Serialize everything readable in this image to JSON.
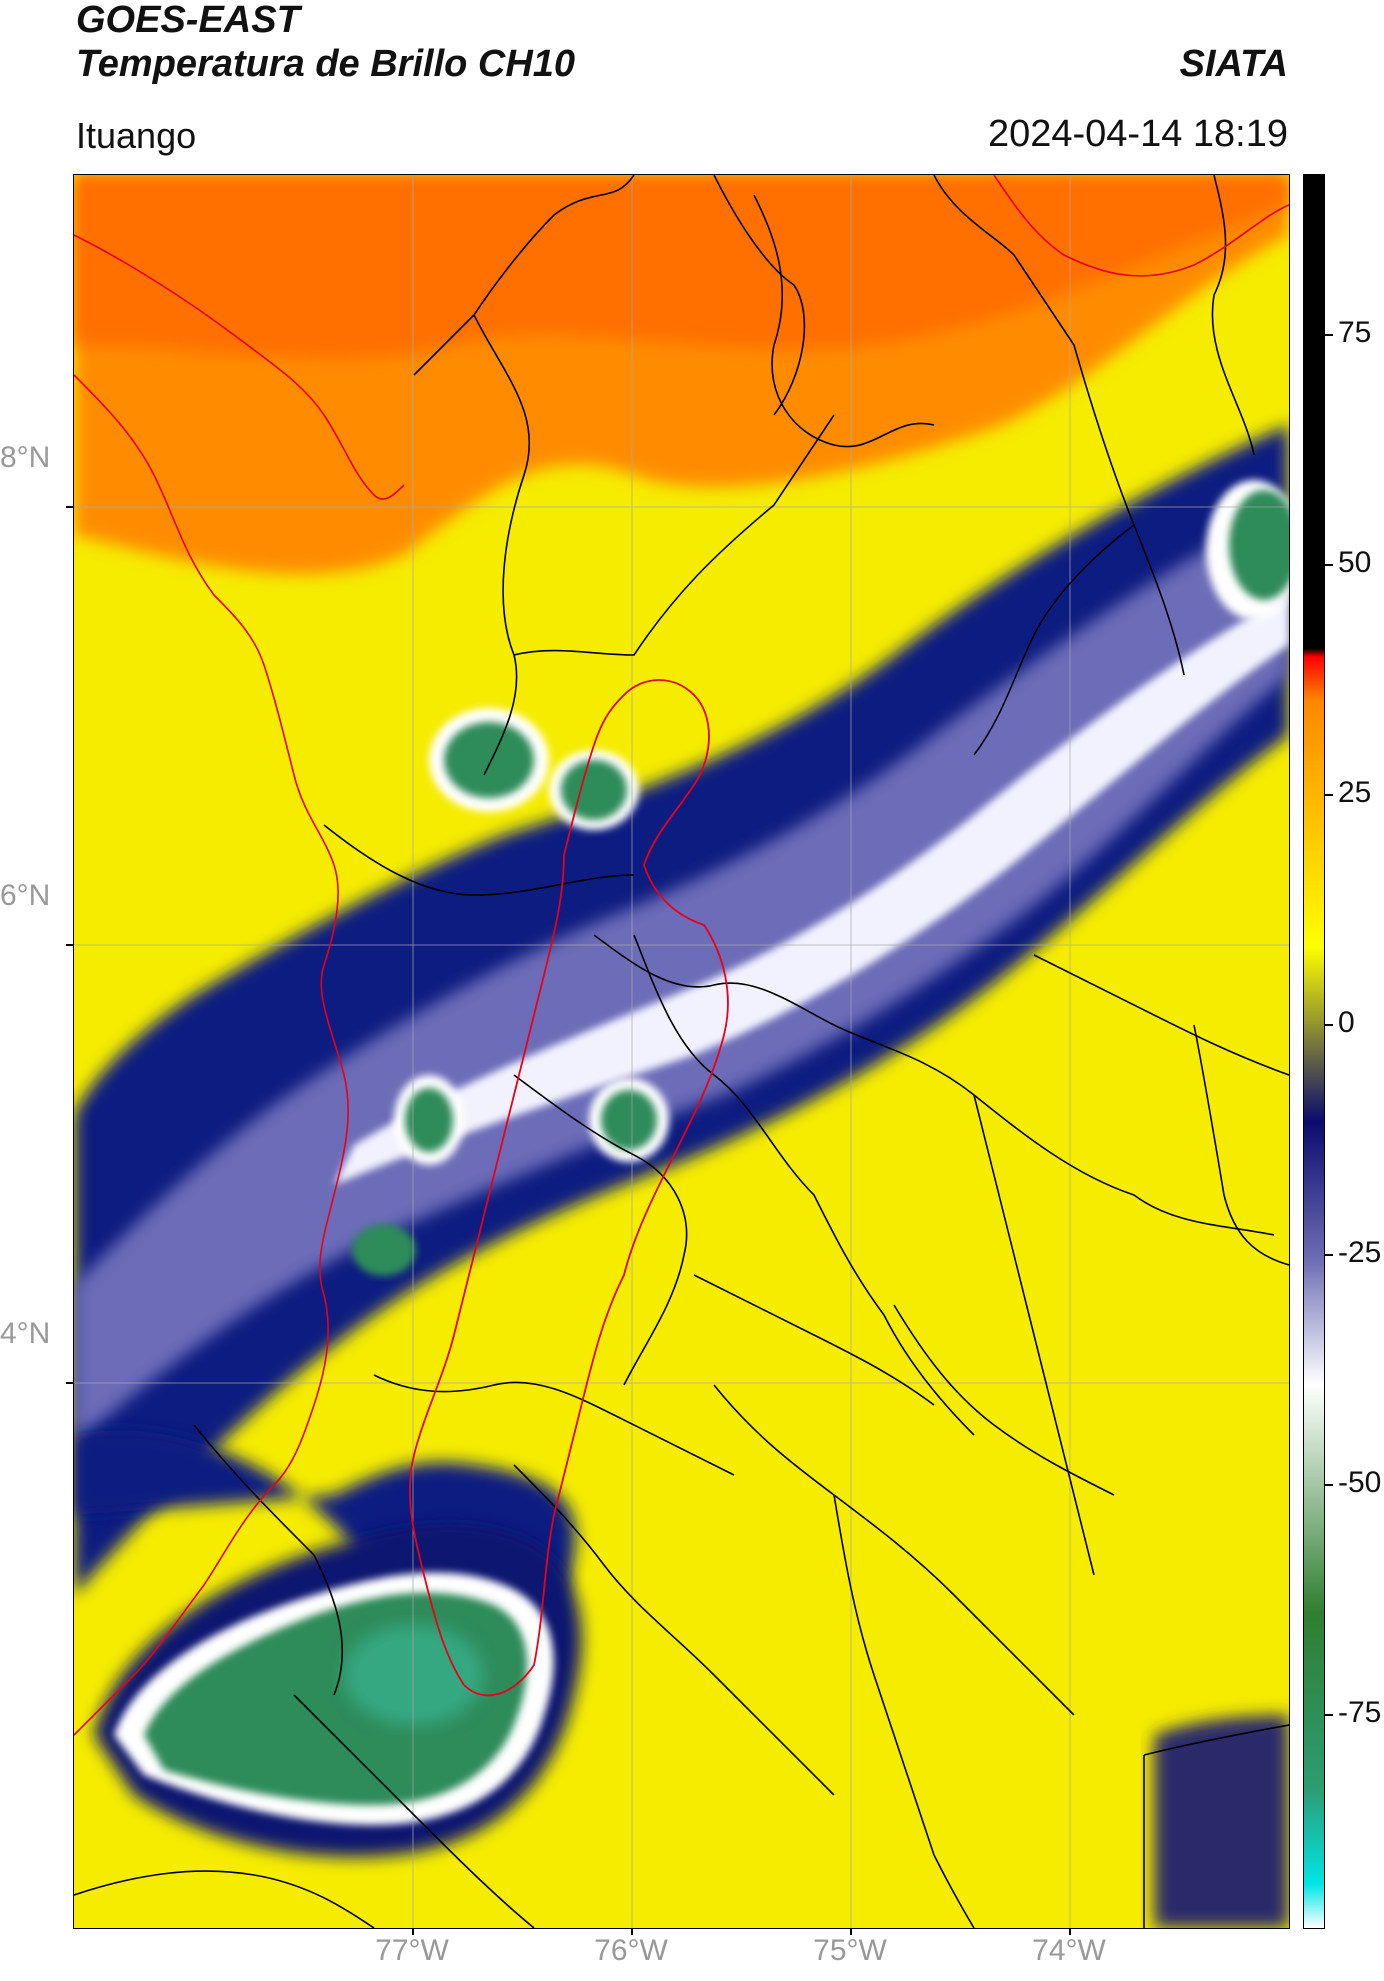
{
  "header": {
    "satellite": "GOES-EAST",
    "product": "Temperatura de Brillo CH10",
    "brand": "SIATA",
    "location": "Ituango",
    "datetime": "2024-04-14 18:19"
  },
  "map": {
    "lat_labels": [
      "8°N",
      "6°N",
      "4°N"
    ],
    "lon_labels": [
      "77°W",
      "76°W",
      "75°W",
      "74°W"
    ],
    "gridlines": true
  },
  "colorbar": {
    "ticks": [
      "75",
      "50",
      "25",
      "0",
      "-25",
      "-50",
      "-75"
    ],
    "palette_stops": [
      "#ffffff",
      "#00e5e5",
      "#2e9c73",
      "#2f7f2f",
      "#ffffff",
      "#6f6fb5",
      "#0b0b6e",
      "#ffff00",
      "#ff8800",
      "#ff0000",
      "#000000"
    ]
  }
}
